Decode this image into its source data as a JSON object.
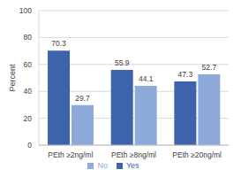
{
  "chart_data": {
    "type": "bar",
    "y_label": "Percent",
    "categories": [
      "PEth ≥2ng/ml",
      "PEth ≥8ng/ml",
      "PEth ≥20ng/ml"
    ],
    "series": [
      {
        "name": "Yes",
        "color": "#3e63ad",
        "values": [
          70.3,
          55.9,
          47.3
        ]
      },
      {
        "name": "No",
        "color": "#8eaadb",
        "values": [
          29.7,
          44.1,
          52.7
        ]
      }
    ],
    "ylim": [
      0,
      100
    ],
    "yticks": [
      0,
      20,
      40,
      60,
      80,
      100
    ],
    "grid": true,
    "data_labels": true,
    "legend": "bottom"
  }
}
